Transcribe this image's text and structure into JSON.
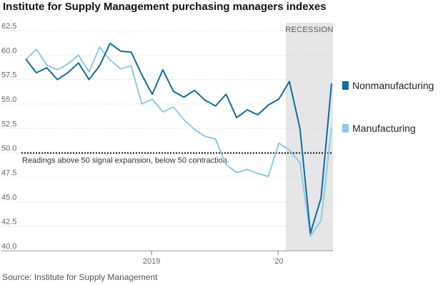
{
  "chart_data": {
    "type": "line",
    "title": "Institute for Supply Management purchasing managers indexes",
    "source": "Source: Institute for Supply Management",
    "ylim": [
      40.0,
      62.5
    ],
    "yticks": [
      "62.5",
      "60.0",
      "57.5",
      "55.0",
      "52.5",
      "50.0",
      "47.5",
      "45.0",
      "42.5",
      "40.0"
    ],
    "xtick_labels": [
      "2019",
      "’20"
    ],
    "x": [
      "2018-01",
      "2018-02",
      "2018-03",
      "2018-04",
      "2018-05",
      "2018-06",
      "2018-07",
      "2018-08",
      "2018-09",
      "2018-10",
      "2018-11",
      "2018-12",
      "2019-01",
      "2019-02",
      "2019-03",
      "2019-04",
      "2019-05",
      "2019-06",
      "2019-07",
      "2019-08",
      "2019-09",
      "2019-10",
      "2019-11",
      "2019-12",
      "2020-01",
      "2020-02",
      "2020-03",
      "2020-04",
      "2020-05",
      "2020-06"
    ],
    "series": [
      {
        "name": "Nonmanufacturing",
        "color": "#0f6d9c",
        "values": [
          59.6,
          58.2,
          58.7,
          57.5,
          58.2,
          59.2,
          57.5,
          58.9,
          61.2,
          60.4,
          60.3,
          58.0,
          56.0,
          58.5,
          56.3,
          55.7,
          56.4,
          55.4,
          54.8,
          56.0,
          53.6,
          54.4,
          53.9,
          54.9,
          55.5,
          57.3,
          52.5,
          41.8,
          45.4,
          57.1
        ]
      },
      {
        "name": "Manufacturing",
        "color": "#8ecae6",
        "values": [
          59.5,
          60.6,
          59.0,
          58.5,
          59.1,
          60.0,
          58.3,
          60.8,
          59.5,
          58.6,
          58.9,
          55.0,
          55.5,
          54.2,
          54.7,
          53.4,
          52.4,
          51.7,
          51.4,
          48.8,
          48.0,
          48.3,
          47.9,
          47.6,
          51.0,
          50.3,
          49.0,
          41.5,
          43.1,
          52.6
        ]
      }
    ],
    "recession": {
      "label": "RECESSION",
      "start": "2020-02",
      "end": "2020-06"
    },
    "reference_line": {
      "y": 50.0,
      "label": "Readings above 50 signal expansion, below 50 contraction."
    },
    "legend_placement": "right"
  }
}
